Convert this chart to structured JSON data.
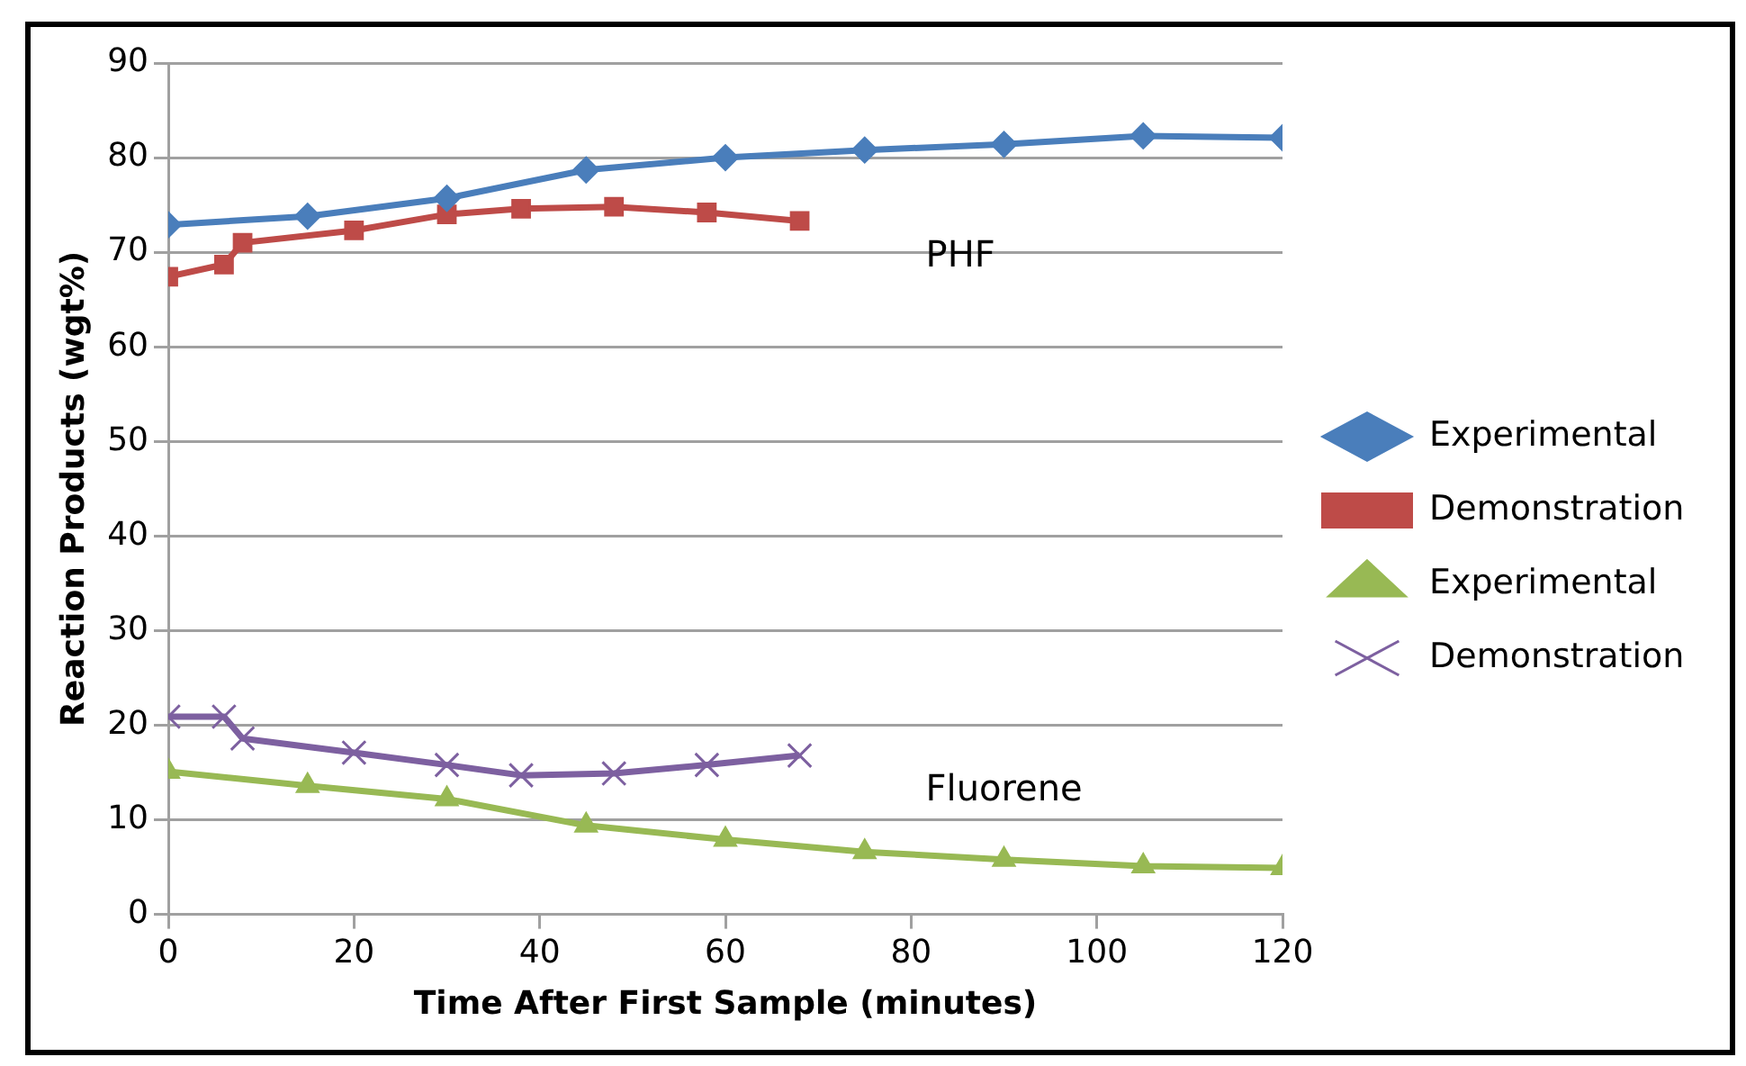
{
  "chart_data": {
    "type": "line",
    "xlabel": "Time After First Sample (minutes)",
    "ylabel": "Reaction Products (wgt%)",
    "xlim": [
      0,
      120
    ],
    "xticks": [
      0,
      20,
      40,
      60,
      80,
      100,
      120
    ],
    "ylim": [
      0,
      90
    ],
    "yticks": [
      0,
      10,
      20,
      30,
      40,
      50,
      60,
      70,
      80,
      90
    ],
    "grid": "y",
    "legend": "right",
    "line_style": "solid",
    "series": [
      {
        "name": "Experimental",
        "color": "#4a7ebb",
        "marker": "diamond",
        "x": [
          0,
          15,
          30,
          45,
          60,
          75,
          90,
          105,
          120
        ],
        "values": [
          72.9,
          73.8,
          75.7,
          78.7,
          80.0,
          80.8,
          81.4,
          82.3,
          82.1
        ]
      },
      {
        "name": "Demonstration",
        "color": "#be4b48",
        "marker": "square",
        "x": [
          0,
          6,
          8,
          20,
          30,
          38,
          48,
          58,
          68
        ],
        "values": [
          67.4,
          68.7,
          71.0,
          72.3,
          74.0,
          74.6,
          74.8,
          74.2,
          73.3
        ]
      },
      {
        "name": "Experimental",
        "color": "#98b954",
        "marker": "triangle",
        "x": [
          0,
          15,
          30,
          45,
          60,
          75,
          90,
          105,
          120
        ],
        "values": [
          15.1,
          13.6,
          12.2,
          9.4,
          7.9,
          6.6,
          5.8,
          5.1,
          4.9
        ]
      },
      {
        "name": "Demonstration",
        "color": "#7d60a0",
        "marker": "cross",
        "x": [
          0,
          6,
          8,
          20,
          30,
          38,
          48,
          58,
          68
        ],
        "values": [
          20.9,
          20.9,
          18.6,
          17.1,
          15.8,
          14.7,
          14.9,
          15.8,
          16.8
        ]
      }
    ],
    "annotations": [
      "PHF",
      "Fluorene"
    ]
  }
}
